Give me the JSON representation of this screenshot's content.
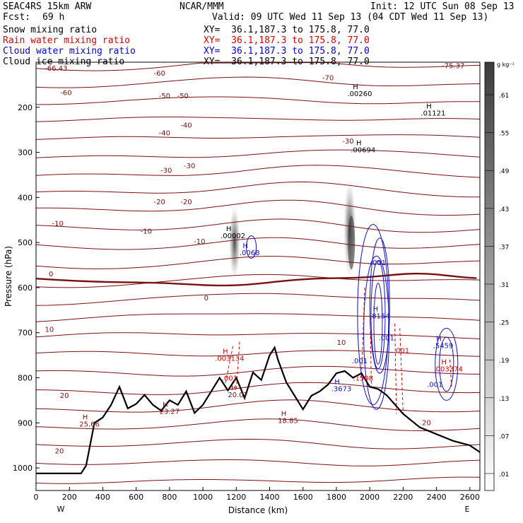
{
  "header": {
    "model": "SEAC4RS 15km ARW",
    "fcst_label": "Fcst:",
    "fcst_value": "69 h",
    "org": "NCAR/MMM",
    "init": "Init: 12 UTC Sun 08 Sep 13",
    "valid": "Valid: 09 UTC Wed 11 Sep 13 (04 CDT Wed 11 Sep 13)",
    "fields": [
      {
        "name": "Snow mixing ratio",
        "xy": "",
        "color": "#000000"
      },
      {
        "name": "Rain water mixing ratio",
        "xy": "XY=  36.1,187.3 to 175.8, 77.0",
        "color": "#e00000"
      },
      {
        "name": "Cloud water mixing ratio",
        "xy": "XY=  36.1,187.3 to 175.8, 77.0",
        "color": "#0000e0"
      },
      {
        "name": "Cloud ice mixing ratio",
        "xy": "XY=  36.1,187.3 to 175.8, 77.0",
        "color": "#000000"
      }
    ],
    "snow_xy": "XY=  36.1,187.3 to 175.8, 77.0"
  },
  "chart_data": {
    "type": "cross-section",
    "xlabel": "Distance (km)",
    "ylabel": "Pressure (hPa)",
    "xlim": [
      0,
      2660
    ],
    "ylim": [
      1050,
      100
    ],
    "x_ticks": [
      0,
      200,
      400,
      600,
      800,
      1000,
      1200,
      1400,
      1600,
      1800,
      2000,
      2200,
      2400,
      2600
    ],
    "y_ticks": [
      200,
      300,
      400,
      500,
      600,
      700,
      800,
      900,
      1000
    ],
    "left_end": "W",
    "right_end": "E",
    "colorbar": {
      "units": "g kg⁻¹",
      "labels": [
        ".01",
        ".07",
        ".13",
        ".19",
        ".25",
        ".31",
        ".37",
        ".43",
        ".49",
        ".55",
        ".61"
      ]
    },
    "temperature_contours": [
      {
        "label": "-70",
        "x": 1750,
        "p": 140
      },
      {
        "label": "-60",
        "x": 740,
        "p": 130
      },
      {
        "label": "-60",
        "x": 180,
        "p": 173
      },
      {
        "label": "-50",
        "x": 880,
        "p": 180
      },
      {
        "label": "-50",
        "x": 770,
        "p": 180
      },
      {
        "label": "-40",
        "x": 900,
        "p": 245
      },
      {
        "label": "-40",
        "x": 770,
        "p": 262
      },
      {
        "label": "-30",
        "x": 1870,
        "p": 280
      },
      {
        "label": "-30",
        "x": 920,
        "p": 335
      },
      {
        "label": "-30",
        "x": 780,
        "p": 345
      },
      {
        "label": "-20",
        "x": 900,
        "p": 415
      },
      {
        "label": "-20",
        "x": 740,
        "p": 415
      },
      {
        "label": "-10",
        "x": 130,
        "p": 463
      },
      {
        "label": "-10",
        "x": 660,
        "p": 480
      },
      {
        "label": "-10",
        "x": 980,
        "p": 503
      },
      {
        "label": "0",
        "x": 90,
        "p": 575
      },
      {
        "label": "0",
        "x": 1020,
        "p": 628
      },
      {
        "label": "10",
        "x": 80,
        "p": 698
      },
      {
        "label": "10",
        "x": 1830,
        "p": 727
      },
      {
        "label": "20",
        "x": 170,
        "p": 845
      },
      {
        "label": "20",
        "x": 2340,
        "p": 905
      },
      {
        "label": "20",
        "x": 140,
        "p": 968
      }
    ],
    "temperature_extrema": [
      {
        "label": "-66.43",
        "x": 120,
        "p": 119
      },
      {
        "label": "-75.37",
        "x": 2500,
        "p": 113
      }
    ],
    "snow_maxima": [
      {
        "marker": "H",
        "value": ".00260",
        "x": 1940,
        "p": 175
      },
      {
        "marker": "H",
        "value": ".01121",
        "x": 2380,
        "p": 218
      },
      {
        "marker": "H",
        "value": ".00694",
        "x": 1960,
        "p": 300
      },
      {
        "marker": "H",
        "value": ".00002",
        "x": 1180,
        "p": 490
      }
    ],
    "cloud_water_maxima": [
      {
        "marker": "H",
        "value": ".0068",
        "x": 1280,
        "p": 528
      },
      {
        "marker": "",
        "value": ".001",
        "x": 2050,
        "p": 550
      },
      {
        "marker": "H",
        "value": ".8154",
        "x": 2060,
        "p": 668
      },
      {
        "marker": "",
        "value": ".001",
        "x": 2100,
        "p": 717
      },
      {
        "marker": "H",
        "value": ".5459",
        "x": 2440,
        "p": 734
      },
      {
        "marker": "",
        "value": ".001",
        "x": 1940,
        "p": 768
      },
      {
        "marker": "",
        "value": ".001",
        "x": 2390,
        "p": 820
      },
      {
        "marker": "H",
        "value": ".3673",
        "x": 1830,
        "p": 830
      }
    ],
    "rain_maxima": [
      {
        "marker": "H",
        "value": ".003134",
        "x": 1160,
        "p": 762
      },
      {
        "marker": "",
        "value": ".001",
        "x": 1160,
        "p": 806
      },
      {
        "marker": "",
        "value": ".001",
        "x": 2190,
        "p": 745
      },
      {
        "marker": "H",
        "value": ".003374",
        "x": 2470,
        "p": 786
      },
      {
        "marker": "",
        "value": ".1508",
        "x": 1960,
        "p": 806
      }
    ],
    "surface_maxima": [
      {
        "marker": "H",
        "value": "25.66",
        "x": 320,
        "p": 908
      },
      {
        "marker": "H",
        "value": "23.27",
        "x": 800,
        "p": 880
      },
      {
        "marker": "H",
        "value": "20.07",
        "x": 1210,
        "p": 843
      },
      {
        "marker": "H",
        "value": "18.85",
        "x": 1510,
        "p": 900
      }
    ],
    "terrain": [
      [
        0,
        1012
      ],
      [
        270,
        1012
      ],
      [
        300,
        995
      ],
      [
        350,
        900
      ],
      [
        400,
        888
      ],
      [
        450,
        860
      ],
      [
        500,
        820
      ],
      [
        550,
        868
      ],
      [
        600,
        858
      ],
      [
        650,
        838
      ],
      [
        700,
        860
      ],
      [
        750,
        873
      ],
      [
        800,
        850
      ],
      [
        850,
        860
      ],
      [
        900,
        830
      ],
      [
        950,
        878
      ],
      [
        1000,
        860
      ],
      [
        1050,
        830
      ],
      [
        1100,
        800
      ],
      [
        1150,
        828
      ],
      [
        1200,
        800
      ],
      [
        1250,
        845
      ],
      [
        1300,
        788
      ],
      [
        1350,
        805
      ],
      [
        1400,
        750
      ],
      [
        1430,
        733
      ],
      [
        1450,
        760
      ],
      [
        1500,
        810
      ],
      [
        1550,
        840
      ],
      [
        1600,
        870
      ],
      [
        1650,
        840
      ],
      [
        1700,
        830
      ],
      [
        1750,
        815
      ],
      [
        1800,
        790
      ],
      [
        1850,
        785
      ],
      [
        1900,
        800
      ],
      [
        1950,
        790
      ],
      [
        2000,
        820
      ],
      [
        2050,
        825
      ],
      [
        2100,
        838
      ],
      [
        2200,
        880
      ],
      [
        2300,
        910
      ],
      [
        2400,
        925
      ],
      [
        2500,
        940
      ],
      [
        2600,
        950
      ],
      [
        2660,
        965
      ]
    ]
  }
}
